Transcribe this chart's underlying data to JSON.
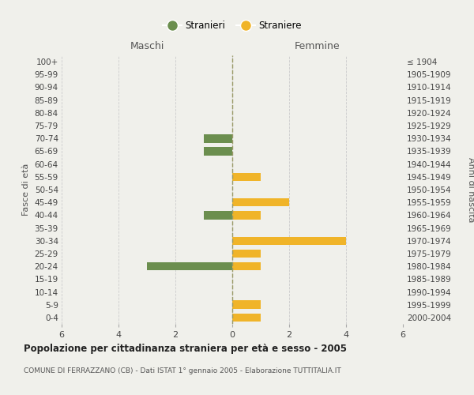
{
  "age_groups": [
    "100+",
    "95-99",
    "90-94",
    "85-89",
    "80-84",
    "75-79",
    "70-74",
    "65-69",
    "60-64",
    "55-59",
    "50-54",
    "45-49",
    "40-44",
    "35-39",
    "30-34",
    "25-29",
    "20-24",
    "15-19",
    "10-14",
    "5-9",
    "0-4"
  ],
  "birth_years": [
    "≤ 1904",
    "1905-1909",
    "1910-1914",
    "1915-1919",
    "1920-1924",
    "1925-1929",
    "1930-1934",
    "1935-1939",
    "1940-1944",
    "1945-1949",
    "1950-1954",
    "1955-1959",
    "1960-1964",
    "1965-1969",
    "1970-1974",
    "1975-1979",
    "1980-1984",
    "1985-1989",
    "1990-1994",
    "1995-1999",
    "2000-2004"
  ],
  "maschi": [
    0,
    0,
    0,
    0,
    0,
    0,
    1,
    1,
    0,
    0,
    0,
    0,
    1,
    0,
    0,
    0,
    3,
    0,
    0,
    0,
    0
  ],
  "femmine": [
    0,
    0,
    0,
    0,
    0,
    0,
    0,
    0,
    0,
    1,
    0,
    2,
    1,
    0,
    4,
    1,
    1,
    0,
    0,
    1,
    1
  ],
  "maschi_color": "#6b8e4e",
  "femmine_color": "#f0b429",
  "background_color": "#f0f0eb",
  "grid_color": "#cccccc",
  "title": "Popolazione per cittadinanza straniera per età e sesso - 2005",
  "subtitle": "COMUNE DI FERRAZZANO (CB) - Dati ISTAT 1° gennaio 2005 - Elaborazione TUTTITALIA.IT",
  "xlabel_left": "Maschi",
  "xlabel_right": "Femmine",
  "ylabel_left": "Fasce di età",
  "ylabel_right": "Anni di nascita",
  "legend_stranieri": "Stranieri",
  "legend_straniere": "Straniere",
  "xlim": 6
}
